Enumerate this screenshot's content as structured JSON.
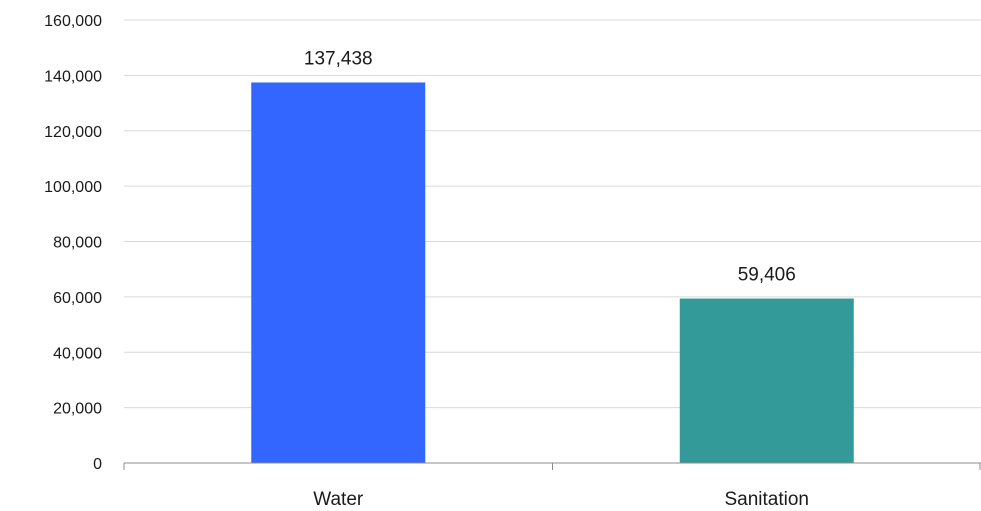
{
  "chart_data": {
    "type": "bar",
    "categories": [
      "Water",
      "Sanitation"
    ],
    "values": [
      137438,
      59406
    ],
    "data_labels": [
      "137,438",
      "59,406"
    ],
    "colors": [
      "#3366ff",
      "#339999"
    ],
    "ylim": [
      0,
      160000
    ],
    "yticks": [
      0,
      20000,
      40000,
      60000,
      80000,
      100000,
      120000,
      140000,
      160000
    ],
    "ytick_labels": [
      "0",
      "20,000",
      "40,000",
      "60,000",
      "80,000",
      "100,000",
      "120,000",
      "140,000",
      "160,000"
    ],
    "title": "",
    "xlabel": "",
    "ylabel": "",
    "grid": true,
    "legend": false
  }
}
